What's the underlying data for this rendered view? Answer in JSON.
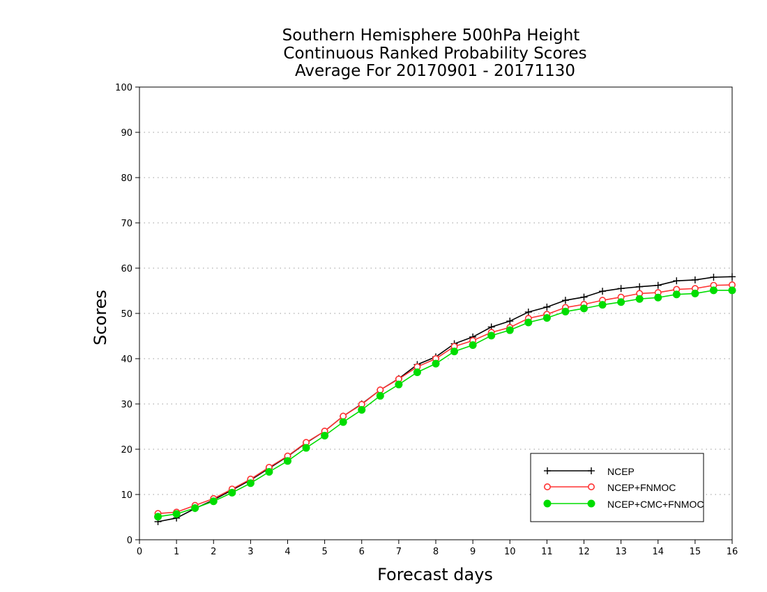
{
  "chart_data": {
    "type": "line",
    "title": [
      "Southern Hemisphere 500hPa Height",
      "Continuous Ranked Probability Scores",
      "Average For 20170901 - 20171130"
    ],
    "xlabel": "Forecast days",
    "ylabel": "Scores",
    "xlim": [
      0,
      16
    ],
    "ylim": [
      0,
      100
    ],
    "xticks": [
      0,
      1,
      2,
      3,
      4,
      5,
      6,
      7,
      8,
      9,
      10,
      11,
      12,
      13,
      14,
      15,
      16
    ],
    "yticks": [
      0,
      10,
      20,
      30,
      40,
      50,
      60,
      70,
      80,
      90,
      100
    ],
    "grid": "horizontal dotted",
    "legend_position": "bottom-right",
    "x": [
      0.5,
      1,
      1.5,
      2,
      2.5,
      3,
      3.5,
      4,
      4.5,
      5,
      5.5,
      6,
      6.5,
      7,
      7.5,
      8,
      8.5,
      9,
      9.5,
      10,
      10.5,
      11,
      11.5,
      12,
      12.5,
      13,
      13.5,
      14,
      14.5,
      15,
      15.5,
      16
    ],
    "series": [
      {
        "name": "NCEP",
        "color": "#000000",
        "marker": "plus",
        "values": [
          4.0,
          4.8,
          6.9,
          8.8,
          11.0,
          13.2,
          15.8,
          18.4,
          21.4,
          24.0,
          27.3,
          30.0,
          33.1,
          35.6,
          38.7,
          40.4,
          43.3,
          44.8,
          47.0,
          48.3,
          50.3,
          51.4,
          52.9,
          53.6,
          54.9,
          55.5,
          55.9,
          56.2,
          57.2,
          57.4,
          58.0,
          58.1
        ]
      },
      {
        "name": "NCEP+FNMOC",
        "color": "#ff3333",
        "marker": "open-circle",
        "values": [
          5.8,
          6.1,
          7.6,
          9.1,
          11.2,
          13.4,
          16.0,
          18.5,
          21.5,
          24.0,
          27.3,
          29.9,
          33.1,
          35.5,
          38.2,
          40.0,
          42.7,
          44.0,
          45.8,
          46.9,
          48.9,
          49.8,
          51.3,
          52.0,
          52.9,
          53.6,
          54.4,
          54.6,
          55.3,
          55.5,
          56.2,
          56.3
        ]
      },
      {
        "name": "NCEP+CMC+FNMOC",
        "color": "#00dd00",
        "marker": "filled-circle",
        "values": [
          5.1,
          5.7,
          7.0,
          8.5,
          10.4,
          12.5,
          15.0,
          17.4,
          20.3,
          23.0,
          26.0,
          28.7,
          31.8,
          34.3,
          37.0,
          38.9,
          41.6,
          43.0,
          45.1,
          46.3,
          48.0,
          49.0,
          50.4,
          51.1,
          51.9,
          52.5,
          53.2,
          53.5,
          54.2,
          54.4,
          55.1,
          55.1
        ]
      }
    ]
  }
}
